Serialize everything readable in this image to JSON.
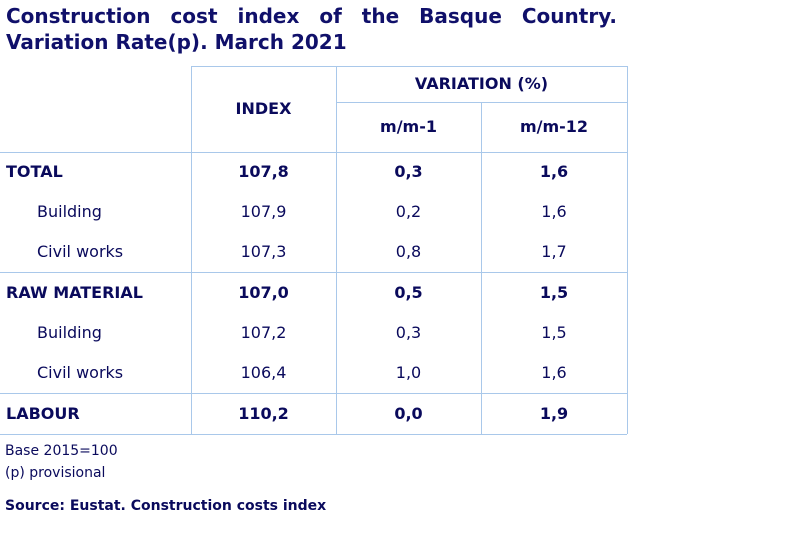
{
  "title": [
    "Construction cost index of the Basque Country.",
    "Variation Rate(p). March 2021"
  ],
  "table": {
    "header": {
      "index": "INDEX",
      "variation": "VARIATION (%)",
      "mm1": "m/m-1",
      "mm12": "m/m-12"
    },
    "rows": [
      [
        "TOTAL",
        "107,8",
        "0,3",
        "1,6"
      ],
      [
        "Building",
        "107,9",
        "0,2",
        "1,6"
      ],
      [
        "Civil works",
        "107,3",
        "0,8",
        "1,7"
      ],
      [
        "RAW MATERIAL",
        "107,0",
        "0,5",
        "1,5"
      ],
      [
        "Building",
        "107,2",
        "0,3",
        "1,5"
      ],
      [
        "Civil works",
        "106,4",
        "1,0",
        "1,6"
      ],
      [
        "LABOUR",
        "110,2",
        "0,0",
        "1,9"
      ]
    ]
  },
  "notes": [
    "Base 2015=100",
    "(p) provisional"
  ],
  "source": "Source: Eustat. Construction costs index"
}
